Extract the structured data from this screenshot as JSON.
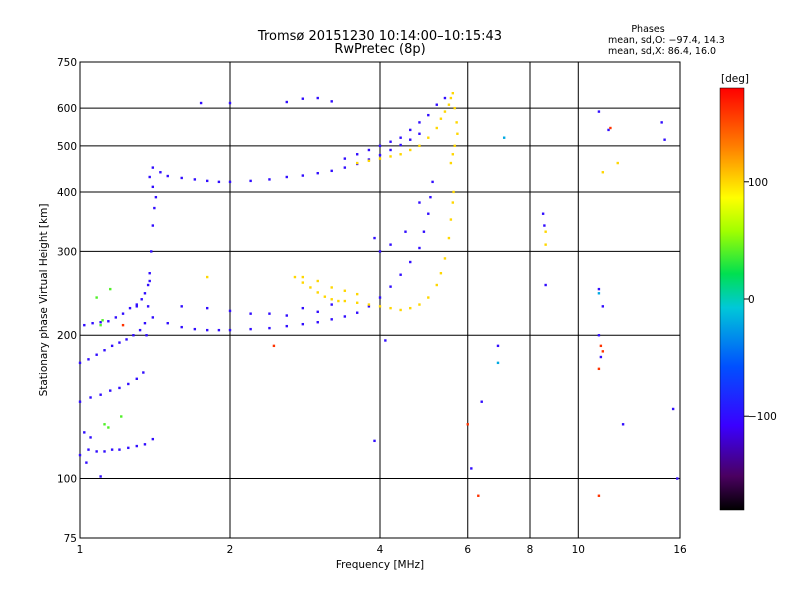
{
  "chart_data": {
    "type": "scatter",
    "title": "Tromsø 20151230 10:14:00–10:15:43",
    "subtitle": "RwPretec (8p)",
    "xlabel": "Frequency [MHz]",
    "ylabel": "Stationary phase Virtual Height [km]",
    "x_scale": "log",
    "y_scale": "log",
    "xlim": [
      1,
      16
    ],
    "ylim": [
      75,
      750
    ],
    "x_ticks": [
      1,
      2,
      4,
      6,
      8,
      10,
      16
    ],
    "x_tick_labels": [
      "1",
      "2",
      "4",
      "6",
      "8",
      "10",
      "16"
    ],
    "y_ticks": [
      75,
      100,
      200,
      300,
      400,
      500,
      600,
      750
    ],
    "y_tick_labels": [
      "75",
      "100",
      "200",
      "300",
      "400",
      "500",
      "600",
      "750"
    ],
    "grid": true,
    "phase_box": {
      "heading": "Phases",
      "line_o": "mean, sd,O: −97.4, 14.3",
      "line_x": "mean, sd,X:  86.4, 16.0"
    },
    "colorbar": {
      "label": "[deg]",
      "range": [
        -180,
        180
      ],
      "ticks": [
        100,
        0,
        -100
      ],
      "tick_labels": [
        "100",
        "0",
        "−100"
      ]
    },
    "series": [
      {
        "color_phase_deg": -100,
        "points": [
          [
            1.02,
            210
          ],
          [
            1.06,
            212
          ],
          [
            1.1,
            213
          ],
          [
            1.14,
            214
          ],
          [
            1.18,
            218
          ],
          [
            1.22,
            222
          ],
          [
            1.26,
            228
          ],
          [
            1.3,
            232
          ],
          [
            1.33,
            238
          ],
          [
            1.35,
            245
          ],
          [
            1.37,
            255
          ],
          [
            1.38,
            270
          ],
          [
            1.0,
            175
          ],
          [
            1.04,
            178
          ],
          [
            1.08,
            182
          ],
          [
            1.12,
            186
          ],
          [
            1.16,
            190
          ],
          [
            1.2,
            193
          ],
          [
            1.24,
            196
          ],
          [
            1.28,
            200
          ],
          [
            1.32,
            205
          ],
          [
            1.35,
            212
          ],
          [
            1.0,
            145
          ],
          [
            1.05,
            148
          ],
          [
            1.1,
            150
          ],
          [
            1.15,
            153
          ],
          [
            1.2,
            155
          ],
          [
            1.25,
            158
          ],
          [
            1.3,
            162
          ],
          [
            1.34,
            167
          ],
          [
            1.04,
            115
          ],
          [
            1.08,
            114
          ],
          [
            1.12,
            114
          ],
          [
            1.16,
            115
          ],
          [
            1.2,
            115
          ],
          [
            1.25,
            116
          ],
          [
            1.3,
            117
          ],
          [
            1.35,
            118
          ],
          [
            1.4,
            121
          ],
          [
            1.02,
            125
          ],
          [
            1.05,
            122
          ],
          [
            1.0,
            112
          ],
          [
            1.03,
            108
          ],
          [
            1.1,
            101
          ],
          [
            1.36,
            200
          ],
          [
            1.37,
            230
          ],
          [
            1.38,
            260
          ],
          [
            1.39,
            300
          ],
          [
            1.4,
            340
          ],
          [
            1.41,
            370
          ],
          [
            1.42,
            390
          ],
          [
            1.4,
            410
          ],
          [
            1.38,
            430
          ],
          [
            1.4,
            450
          ],
          [
            1.45,
            440
          ],
          [
            1.5,
            432
          ],
          [
            1.6,
            428
          ],
          [
            1.7,
            425
          ],
          [
            1.8,
            422
          ],
          [
            1.9,
            420
          ],
          [
            2.0,
            420
          ],
          [
            2.2,
            422
          ],
          [
            2.4,
            425
          ],
          [
            2.6,
            430
          ],
          [
            2.8,
            433
          ],
          [
            3.0,
            438
          ],
          [
            3.2,
            443
          ],
          [
            3.4,
            450
          ],
          [
            3.6,
            458
          ],
          [
            3.8,
            468
          ],
          [
            4.0,
            478
          ],
          [
            4.2,
            490
          ],
          [
            4.4,
            502
          ],
          [
            4.6,
            515
          ],
          [
            4.8,
            530
          ],
          [
            1.3,
            230
          ],
          [
            1.4,
            218
          ],
          [
            1.5,
            212
          ],
          [
            1.6,
            208
          ],
          [
            1.7,
            206
          ],
          [
            1.8,
            205
          ],
          [
            1.9,
            205
          ],
          [
            2.0,
            205
          ],
          [
            2.2,
            206
          ],
          [
            2.4,
            207
          ],
          [
            2.6,
            209
          ],
          [
            2.8,
            211
          ],
          [
            3.0,
            213
          ],
          [
            3.2,
            216
          ],
          [
            3.4,
            219
          ],
          [
            3.6,
            223
          ],
          [
            3.8,
            230
          ],
          [
            4.0,
            240
          ],
          [
            4.2,
            253
          ],
          [
            4.4,
            268
          ],
          [
            4.6,
            285
          ],
          [
            4.8,
            305
          ],
          [
            4.9,
            330
          ],
          [
            5.0,
            360
          ],
          [
            5.05,
            390
          ],
          [
            5.1,
            420
          ],
          [
            1.6,
            230
          ],
          [
            1.8,
            228
          ],
          [
            2.0,
            225
          ],
          [
            2.2,
            222
          ],
          [
            2.4,
            222
          ],
          [
            2.6,
            220
          ],
          [
            2.8,
            228
          ],
          [
            3.0,
            224
          ],
          [
            3.2,
            232
          ],
          [
            3.4,
            470
          ],
          [
            3.6,
            480
          ],
          [
            3.8,
            490
          ],
          [
            4.0,
            500
          ],
          [
            4.2,
            510
          ],
          [
            4.4,
            520
          ],
          [
            4.6,
            540
          ],
          [
            4.8,
            560
          ],
          [
            5.0,
            580
          ],
          [
            5.2,
            610
          ],
          [
            5.4,
            630
          ],
          [
            1.75,
            615
          ],
          [
            2.0,
            615
          ],
          [
            2.6,
            618
          ],
          [
            2.8,
            628
          ],
          [
            3.0,
            630
          ],
          [
            3.2,
            620
          ],
          [
            4.0,
            300
          ],
          [
            4.2,
            310
          ],
          [
            4.5,
            330
          ],
          [
            4.8,
            380
          ],
          [
            3.9,
            320
          ],
          [
            4.1,
            195
          ],
          [
            3.9,
            120
          ],
          [
            6.1,
            105
          ],
          [
            6.4,
            145
          ],
          [
            6.9,
            190
          ],
          [
            8.5,
            360
          ],
          [
            8.55,
            340
          ],
          [
            8.6,
            255
          ],
          [
            11.0,
            250
          ],
          [
            11.0,
            590
          ],
          [
            11.0,
            200
          ],
          [
            11.1,
            180
          ],
          [
            11.2,
            230
          ],
          [
            11.5,
            540
          ],
          [
            12.3,
            130
          ],
          [
            14.7,
            560
          ],
          [
            14.9,
            515
          ],
          [
            15.5,
            140
          ],
          [
            15.8,
            100
          ]
        ]
      },
      {
        "color_phase_deg": 100,
        "points": [
          [
            2.7,
            265
          ],
          [
            2.8,
            258
          ],
          [
            2.9,
            252
          ],
          [
            3.0,
            246
          ],
          [
            3.1,
            241
          ],
          [
            3.2,
            238
          ],
          [
            3.3,
            236
          ],
          [
            3.4,
            236
          ],
          [
            3.6,
            234
          ],
          [
            3.8,
            232
          ],
          [
            4.0,
            230
          ],
          [
            4.2,
            228
          ],
          [
            4.4,
            226
          ],
          [
            4.6,
            228
          ],
          [
            4.8,
            232
          ],
          [
            5.0,
            240
          ],
          [
            5.2,
            255
          ],
          [
            5.3,
            270
          ],
          [
            5.4,
            290
          ],
          [
            5.5,
            320
          ],
          [
            5.55,
            350
          ],
          [
            5.6,
            380
          ],
          [
            5.62,
            400
          ],
          [
            2.8,
            265
          ],
          [
            3.0,
            260
          ],
          [
            3.2,
            252
          ],
          [
            3.4,
            248
          ],
          [
            3.6,
            244
          ],
          [
            3.6,
            460
          ],
          [
            3.8,
            465
          ],
          [
            4.0,
            470
          ],
          [
            4.2,
            475
          ],
          [
            4.4,
            480
          ],
          [
            4.6,
            490
          ],
          [
            4.8,
            500
          ],
          [
            5.0,
            520
          ],
          [
            5.2,
            545
          ],
          [
            5.3,
            570
          ],
          [
            5.4,
            590
          ],
          [
            5.5,
            610
          ],
          [
            5.55,
            630
          ],
          [
            5.6,
            645
          ],
          [
            5.65,
            600
          ],
          [
            5.7,
            560
          ],
          [
            5.72,
            530
          ],
          [
            5.65,
            500
          ],
          [
            5.6,
            480
          ],
          [
            5.55,
            460
          ],
          [
            8.6,
            330
          ],
          [
            8.6,
            310
          ],
          [
            11.2,
            440
          ],
          [
            12.0,
            460
          ],
          [
            1.8,
            265
          ]
        ]
      },
      {
        "color_phase_deg": 160,
        "points": [
          [
            6.3,
            92
          ],
          [
            6.0,
            130
          ],
          [
            11.0,
            92
          ],
          [
            11.0,
            170
          ],
          [
            11.1,
            190
          ],
          [
            11.2,
            185
          ],
          [
            11.6,
            545
          ],
          [
            2.45,
            190
          ],
          [
            1.22,
            210
          ]
        ]
      },
      {
        "color_phase_deg": 40,
        "points": [
          [
            1.08,
            240
          ],
          [
            1.1,
            210
          ],
          [
            1.11,
            215
          ],
          [
            1.12,
            130
          ],
          [
            1.14,
            128
          ],
          [
            1.15,
            250
          ],
          [
            1.21,
            135
          ]
        ]
      },
      {
        "color_phase_deg": -20,
        "points": [
          [
            6.9,
            175
          ],
          [
            7.1,
            520
          ],
          [
            11.0,
            245
          ]
        ]
      }
    ]
  }
}
